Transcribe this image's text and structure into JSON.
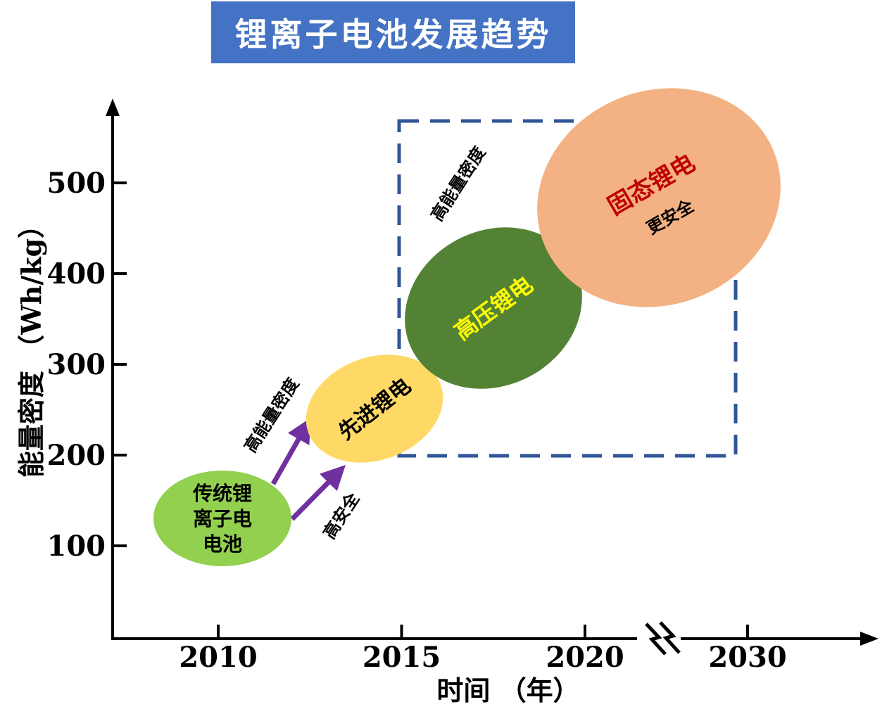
{
  "chart_data": {
    "type": "bubble-timeline",
    "title": "锂离子电池发展趋势",
    "xlabel": "时间 （年）",
    "ylabel": "能量密度 （Wh/kg）",
    "x_ticks": [
      "2010",
      "2015",
      "2020",
      "2030"
    ],
    "y_ticks": [
      "100",
      "200",
      "300",
      "400",
      "500"
    ],
    "axis_break_marker": true,
    "colors": {
      "title_bg": "#4472c4",
      "arrow": "#7030a0",
      "dashed_box": "#2f5597"
    },
    "stages": [
      {
        "label_lines": [
          "传统锂",
          "离子电",
          "电池"
        ],
        "x": 2010.2,
        "y": 130,
        "color": "#92d050",
        "label_color": "#000000"
      },
      {
        "label_lines": [
          "先进锂电"
        ],
        "x": 2014.2,
        "y": 230,
        "color": "#ffd966",
        "label_color": "#000000"
      },
      {
        "label_lines": [
          "高压锂电"
        ],
        "x": 2017.3,
        "y": 340,
        "color": "#548235",
        "label_color": "#ffff00"
      },
      {
        "label_lines": [
          "固态锂电"
        ],
        "sublabel": "更安全",
        "x": 2023.5,
        "y": 460,
        "color": "#f4b183",
        "label_color": "#c00000"
      }
    ],
    "annotations": [
      {
        "text": "高能量密度",
        "near": "upper arrow"
      },
      {
        "text": "高安全",
        "near": "lower arrow"
      },
      {
        "text": "高能量密度",
        "near": "dashed box top-left"
      }
    ]
  }
}
